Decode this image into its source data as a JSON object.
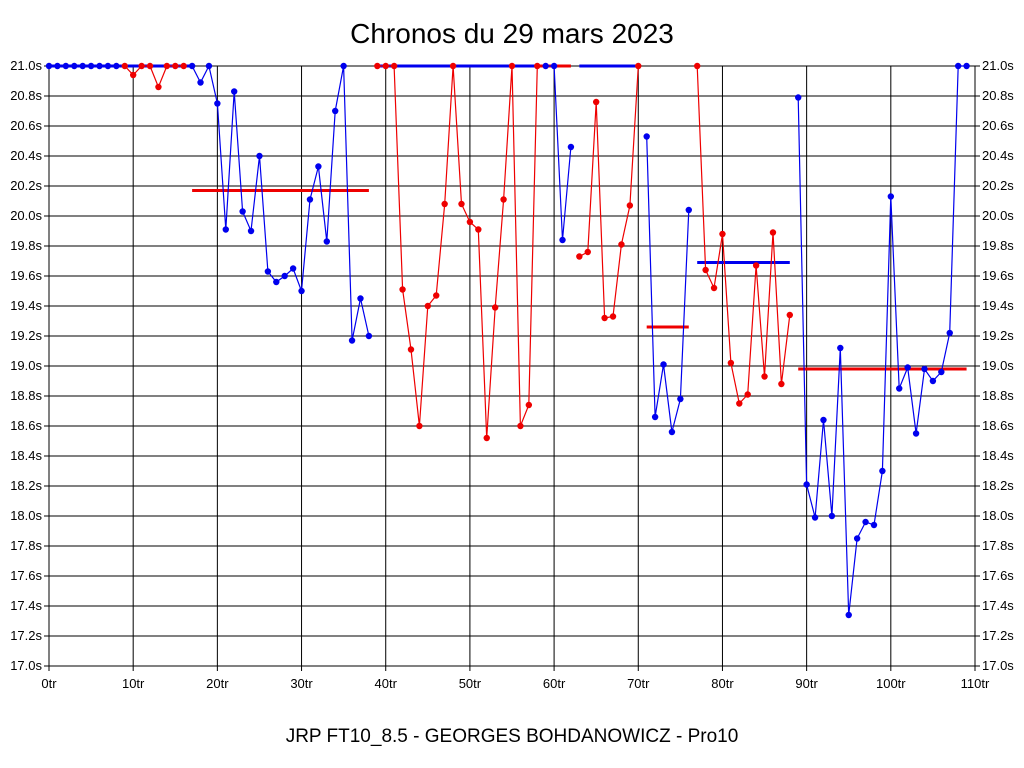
{
  "chart_data": {
    "type": "line",
    "title": "Chronos du 29 mars 2023",
    "subtitle": "JRP FT10_8.5 - GEORGES BOHDANOWICZ - Pro10",
    "xlabel": "",
    "ylabel": "",
    "xlim": [
      0,
      110
    ],
    "ylim": [
      17.0,
      21.0
    ],
    "grid": true,
    "x_ticks": [
      {
        "value": 0,
        "label": "0tr"
      },
      {
        "value": 10,
        "label": "10tr"
      },
      {
        "value": 20,
        "label": "20tr"
      },
      {
        "value": 30,
        "label": "30tr"
      },
      {
        "value": 40,
        "label": "40tr"
      },
      {
        "value": 50,
        "label": "50tr"
      },
      {
        "value": 60,
        "label": "60tr"
      },
      {
        "value": 70,
        "label": "70tr"
      },
      {
        "value": 80,
        "label": "80tr"
      },
      {
        "value": 90,
        "label": "90tr"
      },
      {
        "value": 100,
        "label": "100tr"
      },
      {
        "value": 110,
        "label": "110tr"
      }
    ],
    "y_ticks": [
      {
        "value": 17.0,
        "label": "17.0s"
      },
      {
        "value": 17.2,
        "label": "17.2s"
      },
      {
        "value": 17.4,
        "label": "17.4s"
      },
      {
        "value": 17.6,
        "label": "17.6s"
      },
      {
        "value": 17.8,
        "label": "17.8s"
      },
      {
        "value": 18.0,
        "label": "18.0s"
      },
      {
        "value": 18.2,
        "label": "18.2s"
      },
      {
        "value": 18.4,
        "label": "18.4s"
      },
      {
        "value": 18.6,
        "label": "18.6s"
      },
      {
        "value": 18.8,
        "label": "18.8s"
      },
      {
        "value": 19.0,
        "label": "19.0s"
      },
      {
        "value": 19.2,
        "label": "19.2s"
      },
      {
        "value": 19.4,
        "label": "19.4s"
      },
      {
        "value": 19.6,
        "label": "19.6s"
      },
      {
        "value": 19.8,
        "label": "19.8s"
      },
      {
        "value": 20.0,
        "label": "20.0s"
      },
      {
        "value": 20.2,
        "label": "20.2s"
      },
      {
        "value": 20.4,
        "label": "20.4s"
      },
      {
        "value": 20.6,
        "label": "20.6s"
      },
      {
        "value": 20.8,
        "label": "20.8s"
      },
      {
        "value": 21.0,
        "label": "21.0s"
      }
    ],
    "colors": {
      "blue": "#0000ee",
      "red": "#ee0000",
      "grid": "#000000"
    },
    "series": [
      {
        "color": "blue",
        "x": [
          0,
          1,
          2,
          3,
          4,
          5,
          6,
          7,
          8
        ],
        "y": [
          21.0,
          21.0,
          21.0,
          21.0,
          21.0,
          21.0,
          21.0,
          21.0,
          21.0
        ]
      },
      {
        "color": "red",
        "x": [
          9,
          10,
          11,
          12,
          13,
          14,
          15,
          16
        ],
        "y": [
          21.0,
          20.94,
          21.0,
          21.0,
          20.86,
          21.0,
          21.0,
          21.0
        ]
      },
      {
        "color": "blue",
        "x": [
          17,
          18,
          19,
          20,
          21,
          22,
          23,
          24,
          25,
          26,
          27,
          28,
          29,
          30,
          31,
          32,
          33,
          34,
          35,
          36,
          37,
          38
        ],
        "y": [
          21.0,
          20.89,
          21.0,
          20.75,
          19.91,
          20.83,
          20.03,
          19.9,
          20.4,
          19.63,
          19.56,
          19.6,
          19.65,
          19.5,
          20.11,
          20.33,
          19.83,
          20.7,
          21.0,
          19.17,
          19.45,
          19.2
        ]
      },
      {
        "color": "red",
        "x": [
          39,
          40,
          41,
          42,
          43,
          44,
          45,
          46,
          47,
          48,
          49,
          50,
          51,
          52,
          53,
          54,
          55,
          56,
          57,
          58
        ],
        "y": [
          21.0,
          21.0,
          21.0,
          19.51,
          19.11,
          18.6,
          19.4,
          19.47,
          20.08,
          21.0,
          20.08,
          19.96,
          19.91,
          18.52,
          19.39,
          20.11,
          21.0,
          18.6,
          18.74,
          21.0
        ]
      },
      {
        "color": "blue",
        "x": [
          59,
          60,
          61,
          62
        ],
        "y": [
          21.0,
          21.0,
          19.84,
          20.46
        ]
      },
      {
        "color": "red",
        "x": [
          63,
          64,
          65,
          66,
          67,
          68,
          69,
          70
        ],
        "y": [
          19.73,
          19.76,
          20.76,
          19.32,
          19.33,
          19.81,
          20.07,
          21.0
        ]
      },
      {
        "color": "blue",
        "x": [
          71,
          72,
          73,
          74,
          75,
          76
        ],
        "y": [
          20.53,
          18.66,
          19.01,
          18.56,
          18.78,
          20.04
        ]
      },
      {
        "color": "red",
        "x": [
          77,
          78,
          79,
          80,
          81,
          82,
          83,
          84,
          85,
          86,
          87,
          88
        ],
        "y": [
          21.0,
          19.64,
          19.52,
          19.88,
          19.02,
          18.75,
          18.81,
          19.67,
          18.93,
          19.89,
          18.88,
          19.34
        ]
      },
      {
        "color": "blue",
        "x": [
          89,
          90,
          91,
          92,
          93,
          94,
          95,
          96,
          97,
          98,
          99,
          100,
          101,
          102,
          103,
          104,
          105,
          106,
          107,
          108,
          109
        ],
        "y": [
          20.79,
          18.21,
          17.99,
          18.64,
          18.0,
          19.12,
          17.34,
          17.85,
          17.96,
          17.94,
          18.3,
          20.13,
          18.85,
          18.99,
          18.55,
          18.98,
          18.9,
          18.96,
          19.22,
          21.0,
          21.0
        ]
      }
    ],
    "average_lines": [
      {
        "color": "blue",
        "x": [
          0,
          17
        ],
        "y": 21.0
      },
      {
        "color": "red",
        "x": [
          17,
          38
        ],
        "y": 20.17
      },
      {
        "color": "blue",
        "x": [
          39,
          61
        ],
        "y": 21.0
      },
      {
        "color": "red",
        "x": [
          58,
          62
        ],
        "y": 21.0
      },
      {
        "color": "blue",
        "x": [
          63,
          70
        ],
        "y": 21.0
      },
      {
        "color": "red",
        "x": [
          71,
          76
        ],
        "y": 19.26
      },
      {
        "color": "blue",
        "x": [
          77,
          88
        ],
        "y": 19.69
      },
      {
        "color": "red",
        "x": [
          89,
          109
        ],
        "y": 18.98
      }
    ]
  }
}
